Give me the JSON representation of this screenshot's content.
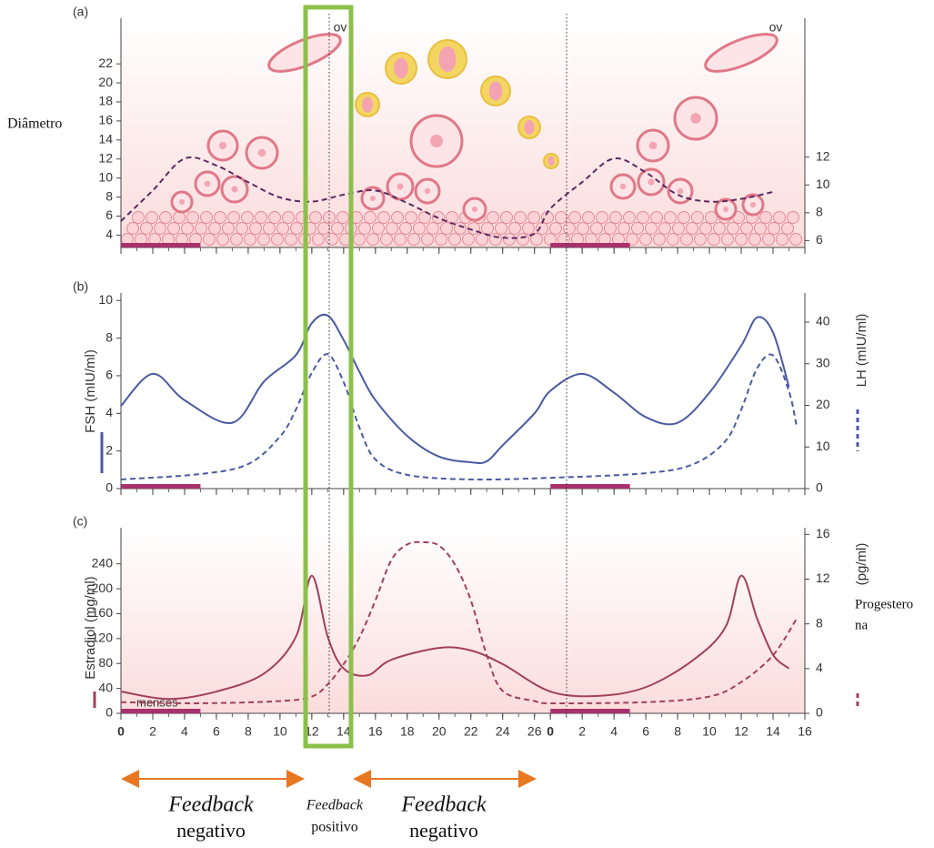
{
  "chart_data": [
    {
      "type": "line",
      "panel_label": "(a)",
      "y_label": "Diâmetro",
      "ov_labels": [
        "ov",
        "ov"
      ],
      "xlim": [
        0,
        43
      ],
      "ylim": [
        2.7,
        26.8
      ],
      "yticks": [
        4,
        6,
        8,
        10,
        12,
        14,
        16,
        18,
        20,
        22
      ],
      "y2lim": [
        5.5,
        22
      ],
      "y2ticks": [
        6,
        8,
        10,
        12
      ],
      "bands": [
        {
          "from": 0,
          "to": 5
        },
        {
          "from": 27,
          "to": 32
        }
      ],
      "band_color": "#a8316e",
      "series": [
        {
          "color": "#5b2a5e",
          "dashed": true,
          "axis": "y2",
          "x": [
            0,
            2,
            4,
            6,
            8,
            10,
            12,
            14,
            16,
            18,
            20,
            22,
            24,
            26,
            27,
            29,
            31,
            33,
            35,
            37,
            39,
            41
          ],
          "values": [
            7.4,
            9.6,
            11.9,
            11.4,
            10.2,
            9.1,
            8.8,
            9.3,
            9.6,
            8.7,
            7.6,
            6.8,
            6.2,
            6.5,
            8.3,
            10.2,
            11.9,
            10.9,
            9.3,
            8.8,
            9,
            9.5
          ]
        }
      ]
    },
    {
      "type": "line",
      "panel_label": "(b)",
      "y_label": "FSH (mIU/ml)",
      "y2_label": "LH (mIU/ml)",
      "xlim": [
        0,
        43
      ],
      "ylim": [
        0,
        10.4
      ],
      "yticks": [
        0,
        2,
        4,
        6,
        8,
        10
      ],
      "y2lim": [
        0,
        47
      ],
      "y2ticks": [
        0,
        10,
        20,
        30,
        40
      ],
      "bands": [
        {
          "from": 0,
          "to": 5
        },
        {
          "from": 27,
          "to": 32
        }
      ],
      "band_color": "#a8316e",
      "series": [
        {
          "color": "#4a5aa0",
          "dashed": false,
          "x": [
            0,
            2,
            4,
            7,
            9,
            11,
            12,
            13,
            14,
            15,
            16,
            18,
            20,
            22,
            23,
            24,
            26,
            27,
            29,
            31,
            33,
            35,
            37,
            39,
            40,
            41,
            42
          ],
          "values": [
            4.4,
            6.1,
            4.7,
            3.5,
            5.7,
            7.1,
            8.8,
            9.2,
            7.9,
            6.2,
            4.7,
            2.8,
            1.7,
            1.4,
            1.45,
            2.3,
            4.0,
            5.2,
            6.1,
            5.1,
            3.8,
            3.5,
            5.1,
            7.6,
            9.1,
            8.3,
            5.4
          ]
        },
        {
          "color": "#4a5aa0",
          "dashed": true,
          "axis": "y2",
          "x": [
            0,
            5,
            8,
            10,
            11,
            12,
            13,
            14,
            15,
            16,
            18,
            22,
            27,
            33,
            36,
            38,
            39,
            40,
            41,
            42,
            42.5
          ],
          "values": [
            2.2,
            3.5,
            5.9,
            12.5,
            19,
            27.8,
            32.3,
            25.6,
            14.6,
            7,
            3.3,
            2.2,
            2.6,
            3.7,
            5.9,
            11.4,
            19,
            28.9,
            32,
            23.4,
            14.6
          ]
        }
      ]
    },
    {
      "type": "line",
      "panel_label": "(c)",
      "y_label": "Estradiol (mg/ml)",
      "y2_label": "(pg/ml)",
      "y2_title": [
        "Progestero",
        "na"
      ],
      "band_text": "menses",
      "xlim": [
        0,
        43
      ],
      "ylim": [
        0,
        298
      ],
      "yticks": [
        0,
        40,
        80,
        120,
        160,
        200,
        240
      ],
      "y2lim": [
        0,
        16.6
      ],
      "y2ticks": [
        0,
        4,
        8,
        12,
        16
      ],
      "xticks": [
        0,
        2,
        4,
        6,
        8,
        10,
        12,
        14,
        16,
        18,
        20,
        22,
        24,
        26,
        {
          "value": 27,
          "label": "0"
        },
        {
          "value": 29,
          "label": "2"
        },
        {
          "value": 31,
          "label": "4"
        },
        {
          "value": 33,
          "label": "6"
        },
        {
          "value": 35,
          "label": "8"
        },
        {
          "value": 37,
          "label": "10"
        },
        {
          "value": 39,
          "label": "12"
        },
        {
          "value": 41,
          "label": "14"
        },
        {
          "value": 43,
          "label": "16"
        }
      ],
      "bands": [
        {
          "from": 0,
          "to": 5
        },
        {
          "from": 27,
          "to": 32
        }
      ],
      "band_color": "#a8316e",
      "series": [
        {
          "color": "#a0405a",
          "dashed": false,
          "x": [
            0,
            3,
            6,
            9,
            11,
            12,
            13,
            14,
            15.5,
            17,
            20,
            22,
            24,
            27,
            30,
            33,
            36,
            38,
            39,
            40,
            41,
            42
          ],
          "values": [
            35,
            23,
            35,
            64,
            123,
            221,
            123,
            72,
            61,
            86,
            105,
            101,
            79,
            35,
            28,
            42,
            86,
            138,
            221,
            152,
            94,
            72
          ]
        },
        {
          "color": "#a0405a",
          "dashed": true,
          "axis": "y2",
          "x": [
            0,
            5,
            10,
            12,
            13,
            14,
            15,
            16,
            17,
            18,
            19,
            20,
            21,
            22,
            23,
            24,
            26,
            27,
            33,
            37,
            39,
            41,
            42.5
          ],
          "values": [
            1,
            0.9,
            1.1,
            1.5,
            2.6,
            4.4,
            6.8,
            10.1,
            13.7,
            15.1,
            15.3,
            15,
            13.3,
            10.1,
            5.2,
            2,
            1.1,
            0.9,
            1,
            1.5,
            2.8,
            5.2,
            8.5
          ]
        }
      ]
    }
  ],
  "footer": [
    {
      "em": "Feedback",
      "text": "negativo"
    },
    {
      "em": "Feedback",
      "text": "positivo"
    },
    {
      "em": "Feedback",
      "text": "negativo"
    }
  ]
}
